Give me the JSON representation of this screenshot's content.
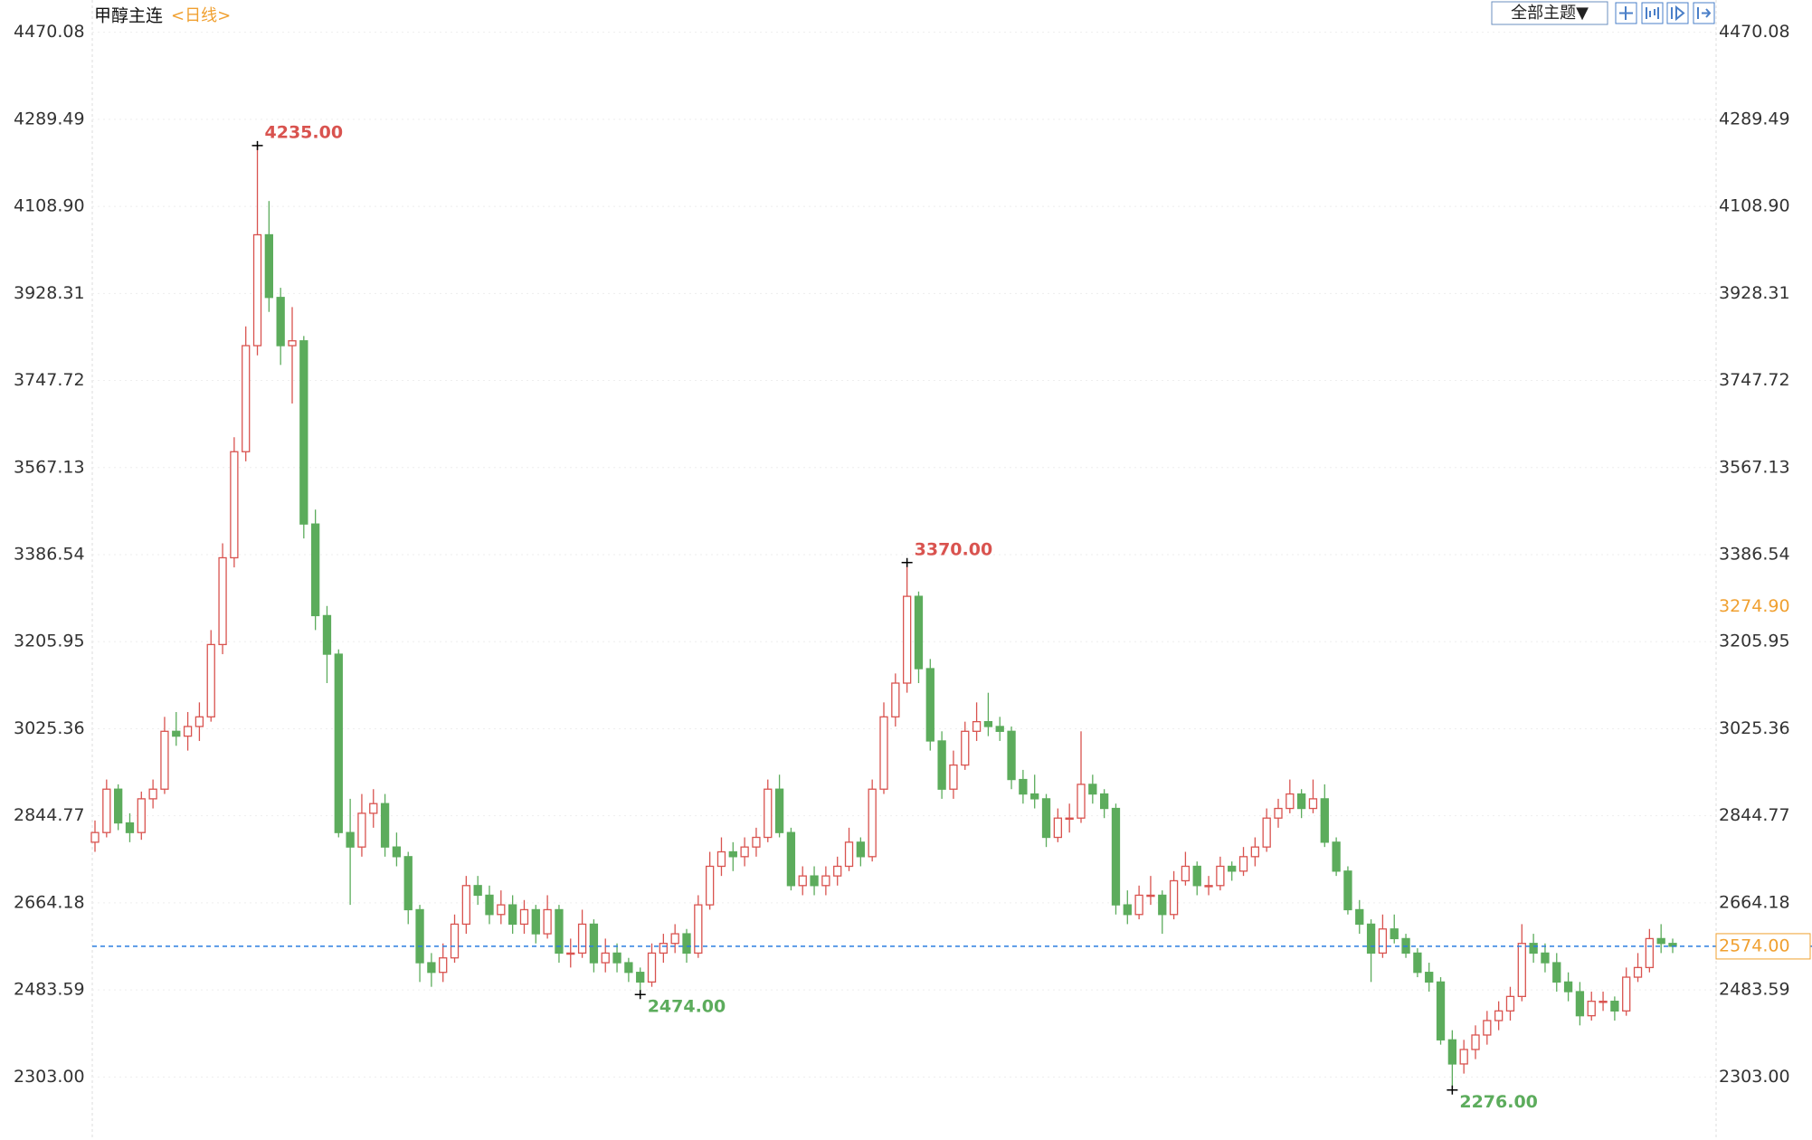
{
  "chart_data": {
    "type": "candlestick",
    "title": "甲醇主连",
    "subtitle": "<日线>",
    "button": "全部主题▼",
    "up_color": "#d9534f",
    "down_color": "#5cac5c",
    "ylim": [
      2176,
      4537
    ],
    "yticks": [
      {
        "value": 2303,
        "label": "2303.00"
      },
      2483.59,
      2664.18,
      2844.77,
      3025.36,
      3205.95,
      3386.54,
      3567.13,
      3747.72,
      3928.31,
      {
        "value": 4108.9,
        "label": "4108.90"
      },
      4289.49,
      4470.08
    ],
    "grid": true,
    "last_price": {
      "value": 2574,
      "label": "2574.00",
      "color": "#2a7de1"
    },
    "cursor_price": {
      "value": 3274.9,
      "label": "3274.90",
      "color": "#f0a030"
    },
    "annotations": [
      {
        "kind": "high",
        "value": 4235,
        "label": "4235.00",
        "color": "#d9534f"
      },
      {
        "kind": "high",
        "value": 3370,
        "label": "3370.00",
        "color": "#d9534f"
      },
      {
        "kind": "low",
        "value": 2474,
        "label": "2474.00",
        "color": "#5cac5c"
      },
      {
        "kind": "low",
        "value": 2276,
        "label": "2276.00",
        "color": "#5cac5c"
      }
    ],
    "open": [
      2790,
      2810,
      2900,
      2830,
      2810,
      2880,
      2900,
      3020,
      3010,
      3030,
      3050,
      3200,
      3380,
      3600,
      3820,
      4050,
      3920,
      3820,
      3830,
      3450,
      3260,
      3180,
      2810,
      2780,
      2850,
      2870,
      2780,
      2760,
      2650,
      2540,
      2520,
      2550,
      2620,
      2700,
      2680,
      2640,
      2660,
      2620,
      2650,
      2600,
      2650,
      2560,
      2560,
      2620,
      2540,
      2560,
      2540,
      2520,
      2500,
      2560,
      2580,
      2600,
      2560,
      2660,
      2740,
      2770,
      2760,
      2780,
      2800,
      2900,
      2810,
      2700,
      2720,
      2700,
      2720,
      2740,
      2790,
      2760,
      2900,
      3050,
      3120,
      3300,
      3150,
      3000,
      2900,
      2950,
      3020,
      3040,
      3030,
      3020,
      2920,
      2890,
      2880,
      2800,
      2840,
      2840,
      2910,
      2890,
      2860,
      2660,
      2640,
      2680,
      2680,
      2640,
      2710,
      2740,
      2700,
      2700,
      2740,
      2730,
      2760,
      2780,
      2840,
      2860,
      2890,
      2860,
      2880,
      2790,
      2730,
      2650,
      2620,
      2560,
      2610,
      2590,
      2560,
      2520,
      2500,
      2380,
      2330,
      2360,
      2390,
      2420,
      2440,
      2470,
      2580,
      2560,
      2540,
      2500,
      2480,
      2430,
      2460,
      2460,
      2440,
      2510,
      2530,
      2590,
      2580
    ],
    "high": [
      2835,
      2920,
      2910,
      2850,
      2895,
      2920,
      3050,
      3060,
      3060,
      3080,
      3230,
      3410,
      3630,
      3860,
      4235,
      4120,
      3940,
      3900,
      3840,
      3480,
      3280,
      3190,
      2880,
      2890,
      2900,
      2890,
      2810,
      2770,
      2660,
      2560,
      2580,
      2640,
      2720,
      2720,
      2700,
      2690,
      2680,
      2670,
      2660,
      2680,
      2660,
      2590,
      2650,
      2630,
      2590,
      2580,
      2550,
      2530,
      2580,
      2600,
      2620,
      2610,
      2680,
      2770,
      2800,
      2790,
      2800,
      2820,
      2920,
      2930,
      2820,
      2740,
      2740,
      2740,
      2760,
      2820,
      2800,
      2920,
      3080,
      3140,
      3370,
      3310,
      3170,
      3020,
      2980,
      3040,
      3080,
      3100,
      3050,
      3030,
      2940,
      2930,
      2890,
      2860,
      2870,
      3020,
      2930,
      2900,
      2870,
      2690,
      2700,
      2720,
      2690,
      2730,
      2770,
      2750,
      2720,
      2760,
      2750,
      2780,
      2800,
      2860,
      2880,
      2920,
      2900,
      2920,
      2910,
      2800,
      2740,
      2670,
      2630,
      2640,
      2640,
      2600,
      2570,
      2540,
      2510,
      2400,
      2380,
      2410,
      2440,
      2460,
      2490,
      2620,
      2600,
      2580,
      2560,
      2520,
      2500,
      2480,
      2480,
      2470,
      2530,
      2560,
      2610,
      2620,
      2590
    ],
    "low": [
      2770,
      2800,
      2815,
      2790,
      2795,
      2860,
      2890,
      2990,
      2980,
      3000,
      3040,
      3180,
      3360,
      3580,
      3800,
      3890,
      3780,
      3700,
      3420,
      3230,
      3120,
      2800,
      2660,
      2760,
      2820,
      2760,
      2740,
      2620,
      2500,
      2490,
      2500,
      2540,
      2600,
      2660,
      2620,
      2620,
      2600,
      2600,
      2580,
      2590,
      2540,
      2530,
      2550,
      2520,
      2520,
      2520,
      2500,
      2474,
      2490,
      2540,
      2560,
      2540,
      2550,
      2650,
      2720,
      2730,
      2740,
      2760,
      2790,
      2800,
      2690,
      2680,
      2680,
      2680,
      2700,
      2730,
      2740,
      2750,
      2890,
      3030,
      3100,
      3120,
      2980,
      2880,
      2880,
      2940,
      3000,
      3010,
      3000,
      2900,
      2870,
      2860,
      2780,
      2790,
      2810,
      2830,
      2870,
      2840,
      2640,
      2620,
      2630,
      2660,
      2600,
      2630,
      2700,
      2680,
      2680,
      2690,
      2710,
      2720,
      2740,
      2770,
      2820,
      2850,
      2840,
      2850,
      2780,
      2720,
      2640,
      2600,
      2500,
      2550,
      2580,
      2550,
      2510,
      2480,
      2370,
      2276,
      2310,
      2340,
      2370,
      2400,
      2420,
      2460,
      2540,
      2520,
      2480,
      2460,
      2410,
      2420,
      2440,
      2420,
      2430,
      2500,
      2520,
      2560,
      2560
    ],
    "close": [
      2810,
      2900,
      2830,
      2810,
      2880,
      2900,
      3020,
      3010,
      3030,
      3050,
      3200,
      3380,
      3600,
      3820,
      4050,
      3920,
      3820,
      3830,
      3450,
      3260,
      3180,
      2810,
      2780,
      2850,
      2870,
      2780,
      2760,
      2650,
      2540,
      2520,
      2550,
      2620,
      2700,
      2680,
      2640,
      2660,
      2620,
      2650,
      2600,
      2650,
      2560,
      2560,
      2620,
      2540,
      2560,
      2540,
      2520,
      2500,
      2560,
      2580,
      2600,
      2560,
      2660,
      2740,
      2770,
      2760,
      2780,
      2800,
      2900,
      2810,
      2700,
      2720,
      2700,
      2720,
      2740,
      2790,
      2760,
      2900,
      3050,
      3120,
      3300,
      3150,
      3000,
      2900,
      2950,
      3020,
      3040,
      3030,
      3020,
      2920,
      2890,
      2880,
      2800,
      2840,
      2840,
      2910,
      2890,
      2860,
      2660,
      2640,
      2680,
      2680,
      2640,
      2710,
      2740,
      2700,
      2700,
      2740,
      2730,
      2760,
      2780,
      2840,
      2860,
      2890,
      2860,
      2880,
      2790,
      2730,
      2650,
      2620,
      2560,
      2610,
      2590,
      2560,
      2520,
      2500,
      2380,
      2330,
      2360,
      2390,
      2420,
      2440,
      2470,
      2580,
      2560,
      2540,
      2500,
      2480,
      2430,
      2460,
      2460,
      2440,
      2510,
      2530,
      2590,
      2580,
      2574
    ]
  }
}
